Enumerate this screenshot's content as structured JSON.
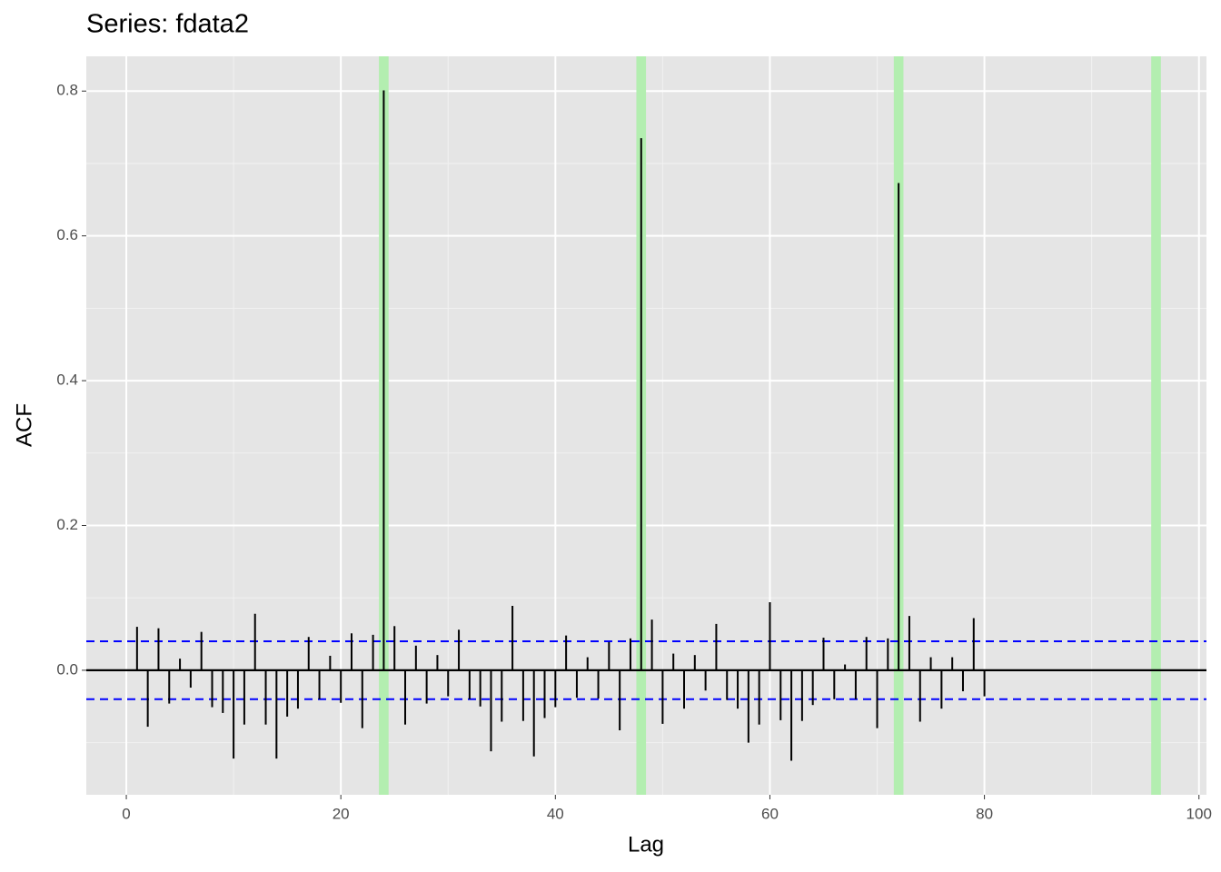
{
  "chart_data": {
    "type": "acf",
    "title": "Series: fdata2",
    "x_label": "Lag",
    "y_label": "ACF",
    "x": [
      1,
      2,
      3,
      4,
      5,
      6,
      7,
      8,
      9,
      10,
      11,
      12,
      13,
      14,
      15,
      16,
      17,
      18,
      19,
      20,
      21,
      22,
      23,
      24,
      25,
      26,
      27,
      28,
      29,
      30,
      31,
      32,
      33,
      34,
      35,
      36,
      37,
      38,
      39,
      40,
      41,
      42,
      43,
      44,
      45,
      46,
      47,
      48,
      49,
      50,
      51,
      52,
      53,
      54,
      55,
      56,
      57,
      58,
      59,
      60,
      61,
      62,
      63,
      64,
      65,
      66,
      67,
      68,
      69,
      70,
      71,
      72,
      73,
      74,
      75,
      76,
      77,
      78,
      79,
      80
    ],
    "values": [
      0.06,
      -0.078,
      0.058,
      -0.046,
      0.016,
      -0.024,
      0.053,
      -0.051,
      -0.059,
      -0.122,
      -0.075,
      0.078,
      -0.075,
      -0.122,
      -0.064,
      -0.053,
      0.046,
      -0.04,
      0.02,
      -0.045,
      0.051,
      -0.08,
      0.049,
      0.801,
      0.061,
      -0.075,
      0.034,
      -0.046,
      0.021,
      -0.036,
      0.056,
      -0.04,
      -0.05,
      -0.112,
      -0.071,
      0.089,
      -0.07,
      -0.119,
      -0.066,
      -0.051,
      0.048,
      -0.038,
      0.018,
      -0.039,
      0.039,
      -0.083,
      0.044,
      0.735,
      0.07,
      -0.074,
      0.023,
      -0.053,
      0.021,
      -0.028,
      0.064,
      -0.041,
      -0.053,
      -0.1,
      -0.075,
      0.094,
      -0.069,
      -0.125,
      -0.07,
      -0.048,
      0.045,
      -0.04,
      0.008,
      -0.04,
      0.046,
      -0.08,
      0.044,
      0.673,
      0.075,
      -0.071,
      0.018,
      -0.053,
      0.018,
      -0.029,
      0.072,
      -0.036
    ],
    "color": "#000000",
    "ci": [
      -0.04,
      0.04
    ],
    "ci_color": "#0000ff",
    "highlight_lags": [
      24,
      48,
      72,
      96
    ],
    "highlight_color": "#b3eeb0",
    "xlim": [
      -3.73,
      100.7
    ],
    "ylim": [
      -0.172,
      0.848
    ],
    "xticks": [
      0,
      20,
      40,
      60,
      80,
      100
    ],
    "yticks": [
      {
        "value": 0,
        "label": "0.0"
      },
      0.2,
      0.4,
      0.6,
      0.8
    ],
    "x_minor_ticks": [
      10,
      30,
      50,
      70,
      90
    ],
    "y_minor_ticks": [
      -0.1,
      0.1,
      0.3,
      0.5,
      0.7
    ],
    "grid": true
  }
}
